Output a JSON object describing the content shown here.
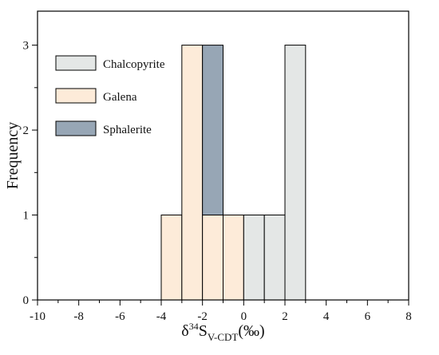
{
  "chart_data": {
    "type": "bar",
    "subtype": "stacked-histogram",
    "title": "",
    "xlabel": {
      "prefix": "δ",
      "superscript": "34",
      "base": "S",
      "subscript": "V-CDT",
      "suffix": "(‰)"
    },
    "ylabel": "Frequency",
    "xlim": [
      -10,
      8
    ],
    "ylim": [
      0,
      3.4
    ],
    "x_ticks": [
      -10,
      -8,
      -6,
      -4,
      -2,
      0,
      2,
      4,
      6,
      8
    ],
    "y_ticks": [
      0,
      1,
      2,
      3
    ],
    "bin_edges": [
      -4,
      -3,
      -2,
      -1,
      0,
      1,
      2,
      3
    ],
    "series": [
      {
        "name": "Chalcopyrite",
        "color": "#e4e7e6",
        "counts": [
          0,
          0,
          0,
          0,
          1,
          1,
          3
        ]
      },
      {
        "name": "Galena",
        "color": "#fdebd9",
        "counts": [
          1,
          3,
          1,
          1,
          0,
          0,
          0
        ]
      },
      {
        "name": "Sphalerite",
        "color": "#97a6b5",
        "counts": [
          0,
          0,
          2,
          0,
          0,
          0,
          0
        ]
      }
    ],
    "stack_order": [
      "Galena",
      "Sphalerite",
      "Chalcopyrite"
    ],
    "grid": false,
    "legend_position": "top-left"
  }
}
